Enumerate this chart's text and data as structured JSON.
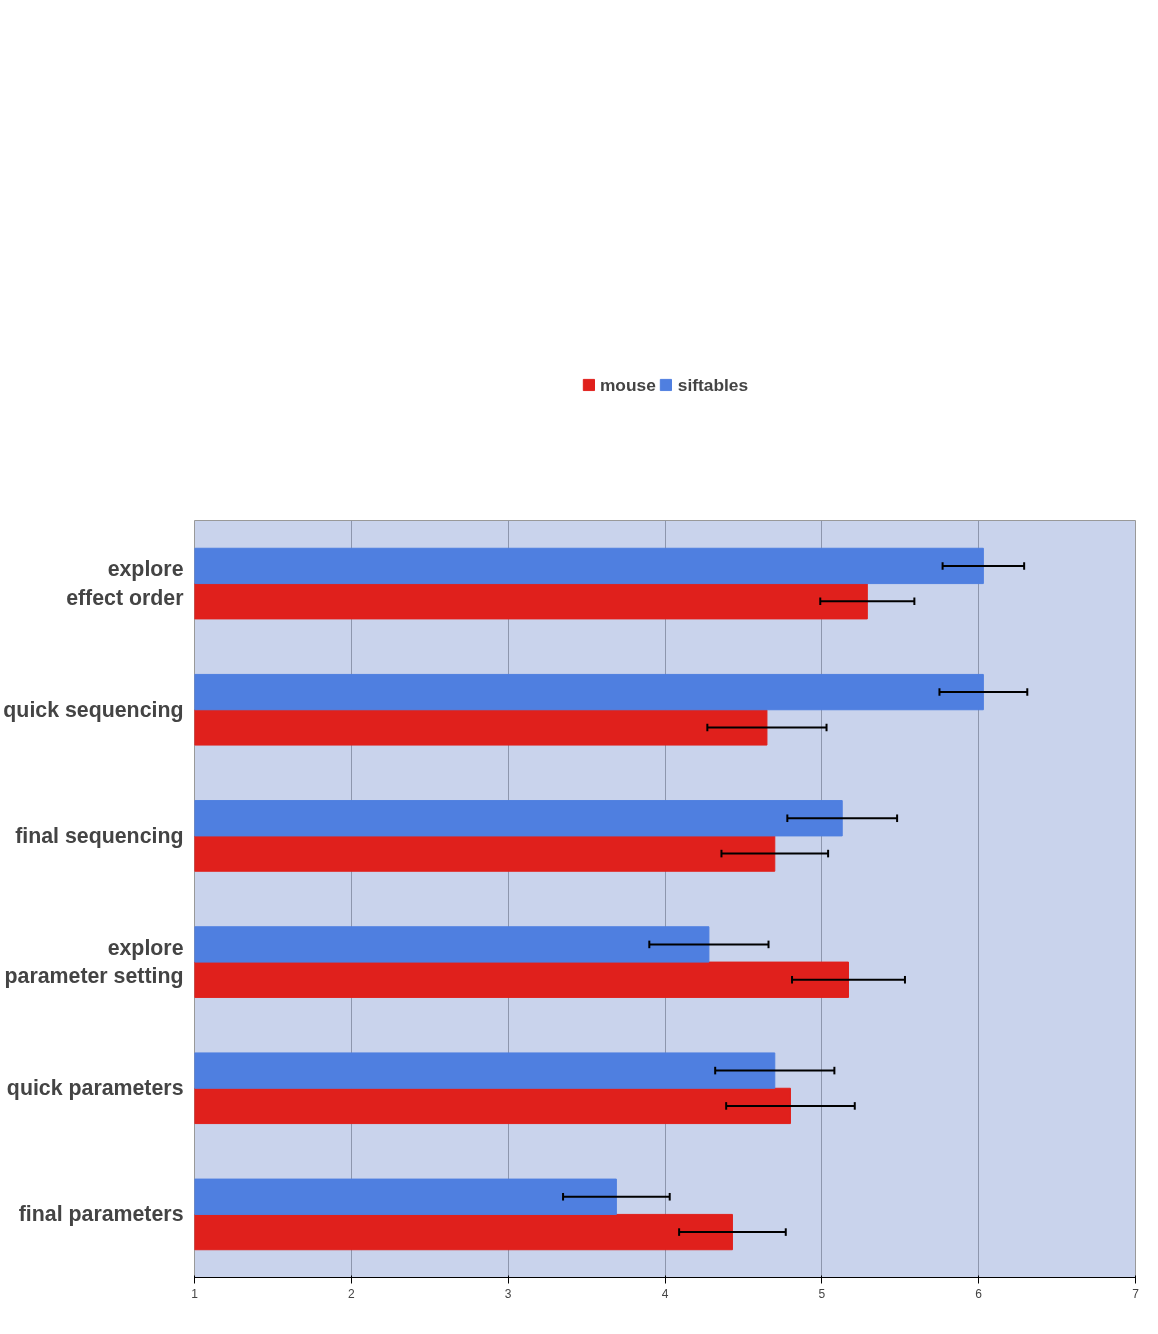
{
  "chart_data": {
    "type": "bar",
    "orientation": "horizontal",
    "categories": [
      "explore\neffect order",
      "quick sequencing",
      "final sequencing",
      "explore\nparameter setting",
      "quick parameters",
      "final parameters"
    ],
    "series": [
      {
        "name": "mouse",
        "color": "#e0201c",
        "values": [
          5.29,
          4.65,
          4.7,
          5.17,
          4.8,
          4.43
        ],
        "errors": [
          0.3,
          0.38,
          0.34,
          0.36,
          0.41,
          0.34
        ]
      },
      {
        "name": "siftables",
        "color": "#4f7fe0",
        "values": [
          6.03,
          6.03,
          5.13,
          4.28,
          4.7,
          3.69
        ],
        "errors": [
          0.26,
          0.28,
          0.35,
          0.38,
          0.38,
          0.34
        ]
      }
    ],
    "xlim": [
      1,
      7
    ],
    "xticks": [
      1,
      2,
      3,
      4,
      5,
      6,
      7
    ],
    "grid": "x",
    "legend": "top"
  }
}
